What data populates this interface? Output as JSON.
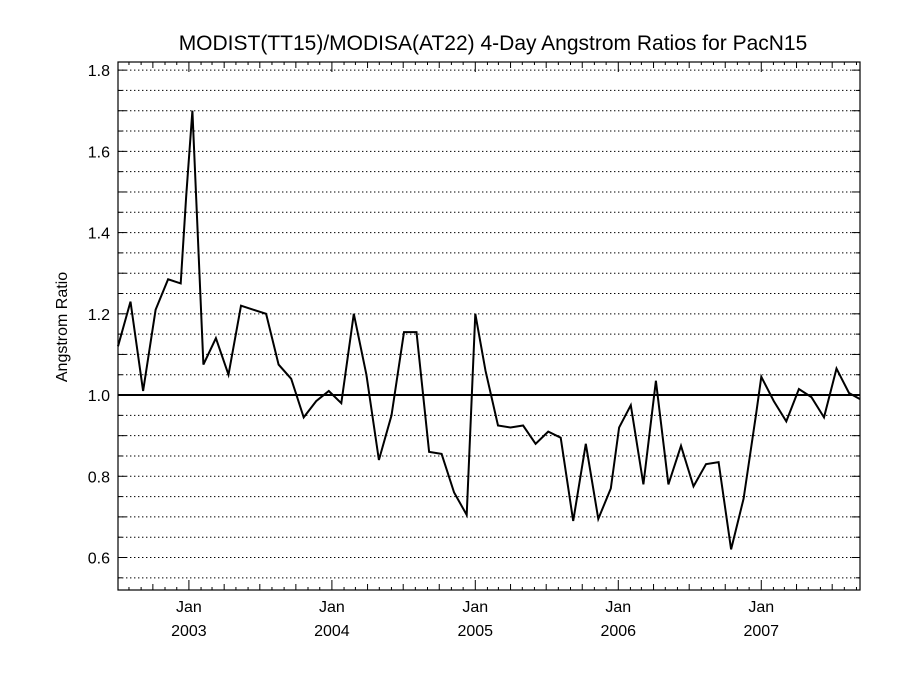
{
  "chart_data": {
    "type": "line",
    "title": "MODIST(TT15)/MODISA(AT22) 4-Day Angstrom Ratios for PacN15",
    "xlabel": "",
    "ylabel": "Angstrom Ratio",
    "ylim": [
      0.52,
      1.82
    ],
    "xlim": [
      "2002-07-04",
      "2007-09-10"
    ],
    "y_ticks": [
      "0.6",
      "0.8",
      "1.0",
      "1.2",
      "1.4",
      "1.6",
      "1.8"
    ],
    "x_ticks": [
      {
        "month": "Jan",
        "year": "2003",
        "date": "2003-01-01"
      },
      {
        "month": "Jan",
        "year": "2004",
        "date": "2004-01-01"
      },
      {
        "month": "Jan",
        "year": "2005",
        "date": "2005-01-01"
      },
      {
        "month": "Jan",
        "year": "2006",
        "date": "2006-01-01"
      },
      {
        "month": "Jan",
        "year": "2007",
        "date": "2007-01-01"
      }
    ],
    "grid": "horizontal dotted every 0.05",
    "reference_line": 1.0,
    "line_color": "#000000",
    "series": [
      {
        "x": [
          "2002-07-04",
          "2002-08-05",
          "2002-09-06",
          "2002-10-08",
          "2002-11-09",
          "2002-12-11",
          "2002-12-25",
          "2003-01-10",
          "2003-02-07",
          "2003-03-11",
          "2003-04-12",
          "2003-05-14",
          "2003-06-15",
          "2003-07-17",
          "2003-08-18",
          "2003-09-19",
          "2003-10-21",
          "2003-11-22",
          "2003-12-24",
          "2004-01-25",
          "2004-02-26",
          "2004-03-29",
          "2004-04-30",
          "2004-06-01",
          "2004-07-03",
          "2004-08-04",
          "2004-09-05",
          "2004-10-07",
          "2004-11-08",
          "2004-12-10",
          "2005-01-01",
          "2005-01-27",
          "2005-02-28",
          "2005-04-01",
          "2005-05-03",
          "2005-06-04",
          "2005-07-06",
          "2005-08-07",
          "2005-09-08",
          "2005-10-10",
          "2005-11-11",
          "2005-12-13",
          "2006-01-03",
          "2006-02-02",
          "2006-03-06",
          "2006-04-07",
          "2006-05-09",
          "2006-06-10",
          "2006-07-12",
          "2006-08-13",
          "2006-09-14",
          "2006-10-16",
          "2006-11-17",
          "2006-12-19",
          "2007-01-01",
          "2007-02-02",
          "2007-03-06",
          "2007-04-07",
          "2007-05-09",
          "2007-06-10",
          "2007-07-12",
          "2007-08-13",
          "2007-09-10"
        ],
        "y": [
          1.12,
          1.23,
          1.01,
          1.21,
          1.285,
          1.275,
          1.49,
          1.7,
          1.075,
          1.14,
          1.05,
          1.22,
          1.21,
          1.2,
          1.075,
          1.04,
          0.945,
          0.985,
          1.01,
          0.98,
          1.2,
          1.05,
          0.84,
          0.95,
          1.155,
          1.155,
          0.86,
          0.855,
          0.76,
          0.705,
          1.2,
          1.06,
          0.925,
          0.92,
          0.925,
          0.88,
          0.91,
          0.895,
          0.69,
          0.88,
          0.695,
          0.77,
          0.92,
          0.975,
          0.78,
          1.035,
          0.78,
          0.875,
          0.775,
          0.83,
          0.835,
          0.62,
          0.745,
          0.955,
          1.045,
          0.985,
          0.935,
          1.015,
          0.995,
          0.945,
          1.065,
          1.005,
          0.99
        ]
      }
    ]
  }
}
